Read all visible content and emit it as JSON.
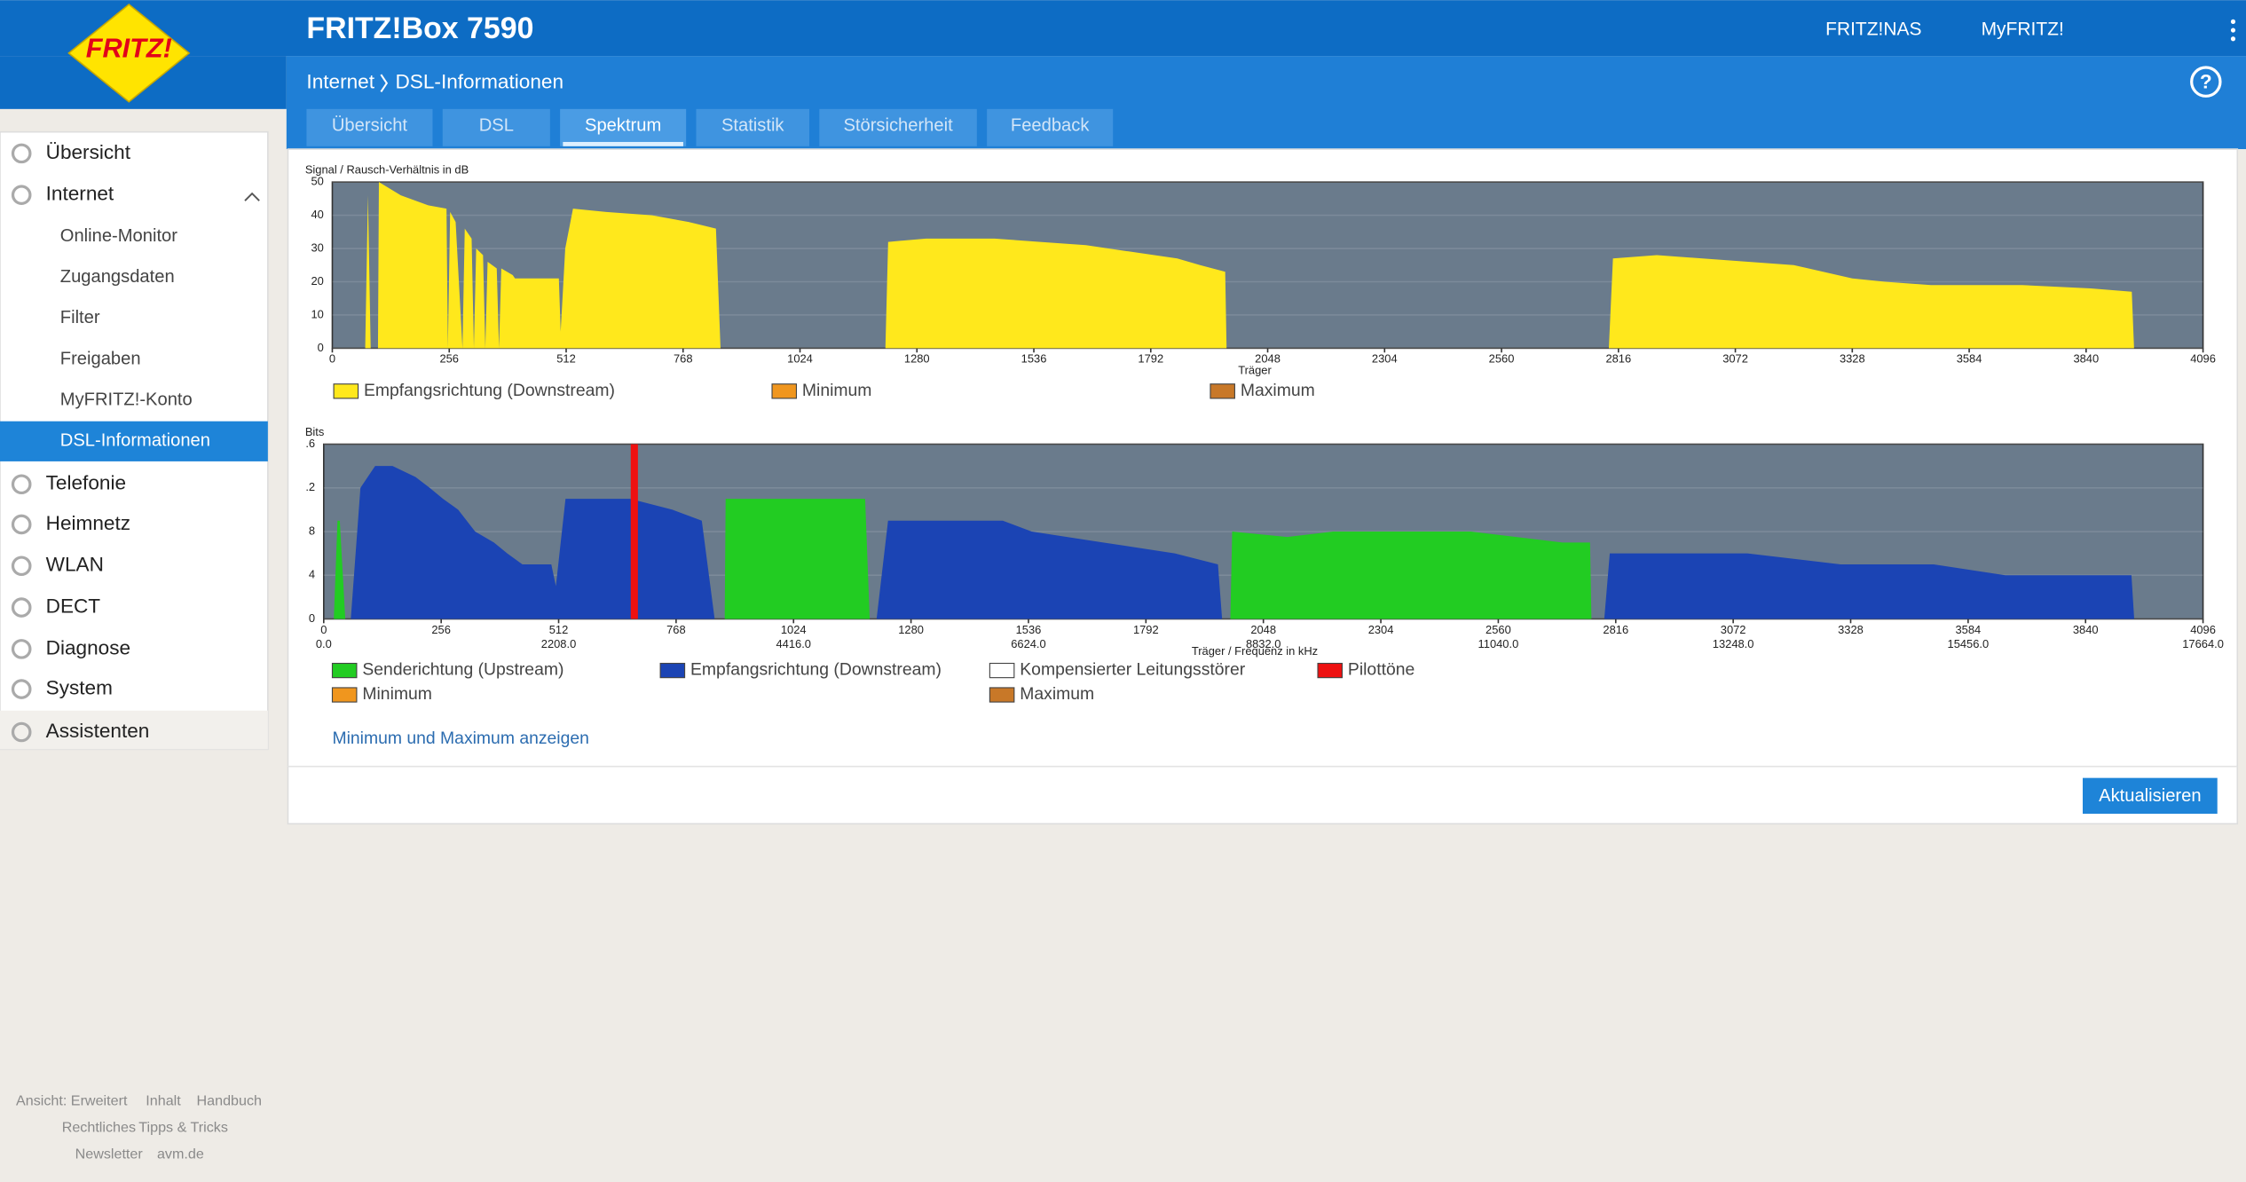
{
  "header": {
    "logo": "FRITZ!",
    "title": "FRITZ!Box 7590",
    "links": [
      "FRITZ!NAS",
      "MyFRITZ!"
    ],
    "help": "?"
  },
  "breadcrumb": [
    "Internet",
    "DSL-Informationen"
  ],
  "tabs": {
    "items": [
      "Übersicht",
      "DSL",
      "Spektrum",
      "Statistik",
      "Störsicherheit",
      "Feedback"
    ],
    "active": 2
  },
  "menu": {
    "items": [
      "Übersicht",
      "Internet",
      "Telefonie",
      "Heimnetz",
      "WLAN",
      "DECT",
      "Diagnose",
      "System",
      "Assistenten"
    ],
    "submenu": [
      "Online-Monitor",
      "Zugangsdaten",
      "Filter",
      "Freigaben",
      "MyFRITZ!-Konto",
      "DSL-Informationen"
    ],
    "active_sub": 5
  },
  "chart_data": [
    {
      "type": "area",
      "title": "Signal / Rausch-Verhältnis in dB",
      "xlabel": "Träger",
      "xlim": [
        0,
        4096
      ],
      "xticks": [
        0,
        256,
        512,
        768,
        1024,
        1280,
        1536,
        1792,
        2048,
        2304,
        2560,
        2816,
        3072,
        3328,
        3584,
        3840,
        4096
      ],
      "ylim": [
        0,
        50
      ],
      "yticks": [
        0,
        10,
        20,
        30,
        40,
        50
      ],
      "grid": true,
      "series": [
        {
          "name": "Empfangsrichtung (Downstream)",
          "color": "#ffe81c",
          "x": [
            72,
            78,
            84,
            100,
            102,
            150,
            210,
            250,
            253,
            258,
            270,
            285,
            290,
            305,
            310,
            315,
            330,
            335,
            340,
            360,
            365,
            370,
            395,
            400,
            496,
            500,
            510,
            527,
            600,
            700,
            780,
            840,
            850,
            null,
            1211,
            1217,
            1300,
            1450,
            1550,
            1650,
            1750,
            1850,
            1900,
            1955,
            1958,
            null,
            2795,
            2804,
            2900,
            3000,
            3100,
            3200,
            3328,
            3400,
            3500,
            3700,
            3850,
            3940,
            3945
          ],
          "values": [
            0,
            46,
            0,
            0,
            50,
            46,
            43,
            42,
            0,
            41,
            38,
            0,
            36,
            33,
            0,
            30,
            28,
            0,
            26,
            24,
            0,
            24,
            22,
            21,
            21,
            5,
            30,
            42,
            41,
            40,
            38,
            36,
            0,
            null,
            0,
            32,
            33,
            33,
            32,
            31,
            29,
            27,
            25,
            23,
            0,
            null,
            0,
            27,
            28,
            27,
            26,
            25,
            21,
            20,
            19,
            19,
            18,
            17,
            0
          ]
        },
        {
          "name": "Minimum",
          "color": "#f0961e",
          "x": [],
          "values": []
        },
        {
          "name": "Maximum",
          "color": "#c87828",
          "x": [],
          "values": []
        }
      ]
    },
    {
      "type": "area",
      "title": "Bits",
      "xlabel": "Träger / Frequenz in kHz",
      "xlim": [
        0,
        4096
      ],
      "xticks": [
        0,
        256,
        512,
        768,
        1024,
        1280,
        1536,
        1792,
        2048,
        2304,
        2560,
        2816,
        3072,
        3328,
        3584,
        3840,
        4096
      ],
      "x2ticks": [
        {
          "value": 0,
          "label": "0.0"
        },
        {
          "value": 512,
          "label": "2208.0"
        },
        {
          "value": 1024,
          "label": "4416.0"
        },
        {
          "value": 1536,
          "label": "6624.0"
        },
        {
          "value": 2048,
          "label": "8832.0"
        },
        {
          "value": 2560,
          "label": "11040.0"
        },
        {
          "value": 3072,
          "label": "13248.0"
        },
        {
          "value": 3584,
          "label": "15456.0"
        },
        {
          "value": 4096,
          "label": "17664.0"
        }
      ],
      "ylim": [
        0,
        16
      ],
      "yticks": [
        0,
        4,
        8,
        {
          "value": 12,
          "label": ".2"
        },
        {
          "value": 16,
          "label": ".6"
        }
      ],
      "grid": true,
      "series": [
        {
          "name": "Senderichtung (Upstream)",
          "color": "#22cc22",
          "x": [
            22,
            30,
            35,
            47,
            null,
            874,
            876,
            1000,
            1100,
            1180,
            1190,
            null,
            1976,
            1980,
            2100,
            2200,
            2500,
            2700,
            2760,
            2763
          ],
          "values": [
            0,
            9,
            9,
            0,
            null,
            0,
            11,
            11,
            11,
            11,
            0,
            null,
            0,
            8,
            7.5,
            8,
            8,
            7,
            7,
            0
          ]
        },
        {
          "name": "Empfangsrichtung (Downstream)",
          "color": "#1b44b4",
          "x": [
            59,
            80,
            112,
            150,
            200,
            231,
            260,
            293,
            330,
            371,
            400,
            433,
            496,
            506,
            527,
            600,
            668,
            760,
            824,
            852,
            null,
            1205,
            1230,
            1480,
            1543,
            1699,
            1855,
            1949,
            1958,
            null,
            2791,
            2803,
            3103,
            3306,
            3509,
            3665,
            3940,
            3946
          ],
          "values": [
            0,
            12,
            14,
            14,
            13,
            12,
            11,
            10,
            8,
            7,
            6,
            5,
            5,
            3,
            11,
            11,
            11,
            10,
            9,
            0,
            null,
            0,
            9,
            9,
            8,
            7,
            6,
            5,
            0,
            null,
            0,
            6,
            6,
            5,
            5,
            4,
            4,
            0
          ]
        },
        {
          "name": "Kompensierter Leitungsstörer",
          "color": "#ffffff",
          "x": [],
          "values": []
        },
        {
          "name": "Pilottöne",
          "color": "#ee1111",
          "mark": "bar",
          "x": [
            677
          ],
          "values": [
            16
          ]
        },
        {
          "name": "Minimum",
          "color": "#f0961e",
          "x": [],
          "values": []
        },
        {
          "name": "Maximum",
          "color": "#c87828",
          "x": [],
          "values": []
        }
      ]
    }
  ],
  "link": "Minimum und Maximum anzeigen",
  "button": "Aktualisieren",
  "footer": [
    [
      "Ansicht: Erweitert",
      "Inhalt",
      "Handbuch"
    ],
    [
      "Rechtliches",
      "Tipps & Tricks"
    ],
    [
      "Newsletter",
      "avm.de"
    ]
  ]
}
